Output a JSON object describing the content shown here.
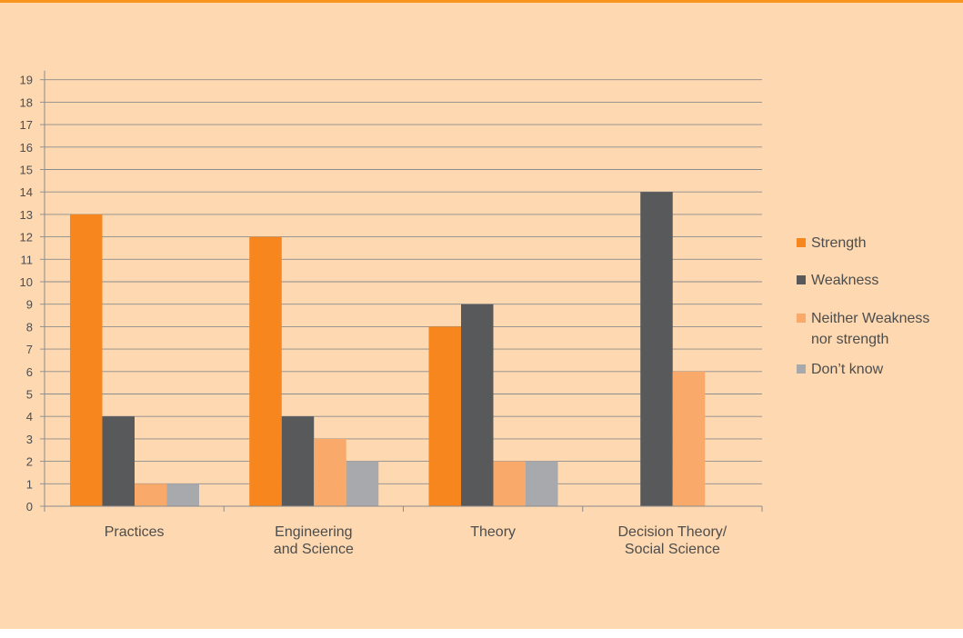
{
  "colors": {
    "background": "#fdd8b0",
    "top_rule": "#f7941d",
    "gridline": "#8c8c8c",
    "axis_text": "#4d4d4d"
  },
  "chart_data": {
    "type": "bar",
    "categories": [
      [
        "Practices"
      ],
      [
        "Engineering",
        "and Science"
      ],
      [
        "Theory"
      ],
      [
        "Decision Theory/",
        "Social Science"
      ]
    ],
    "series": [
      {
        "name": "Strength",
        "color": "#f7861f",
        "values": [
          13,
          12,
          8,
          0
        ]
      },
      {
        "name": "Weakness",
        "color": "#58595b",
        "values": [
          4,
          4,
          9,
          14
        ]
      },
      {
        "name": "Neither Weakness nor strength",
        "legend_lines": [
          "Neither Weakness",
          "nor strength"
        ],
        "color": "#f9aa6b",
        "values": [
          1,
          3,
          2,
          6
        ]
      },
      {
        "name": "Don’t know",
        "color": "#a7a9ac",
        "values": [
          1,
          2,
          2,
          0
        ]
      }
    ],
    "ylim": [
      0,
      19
    ],
    "yticks": [
      0,
      1,
      2,
      3,
      4,
      5,
      6,
      7,
      8,
      9,
      10,
      11,
      12,
      13,
      14,
      15,
      16,
      17,
      18,
      19
    ],
    "grid": true,
    "legend_position": "right",
    "title": "",
    "xlabel": "",
    "ylabel": ""
  }
}
